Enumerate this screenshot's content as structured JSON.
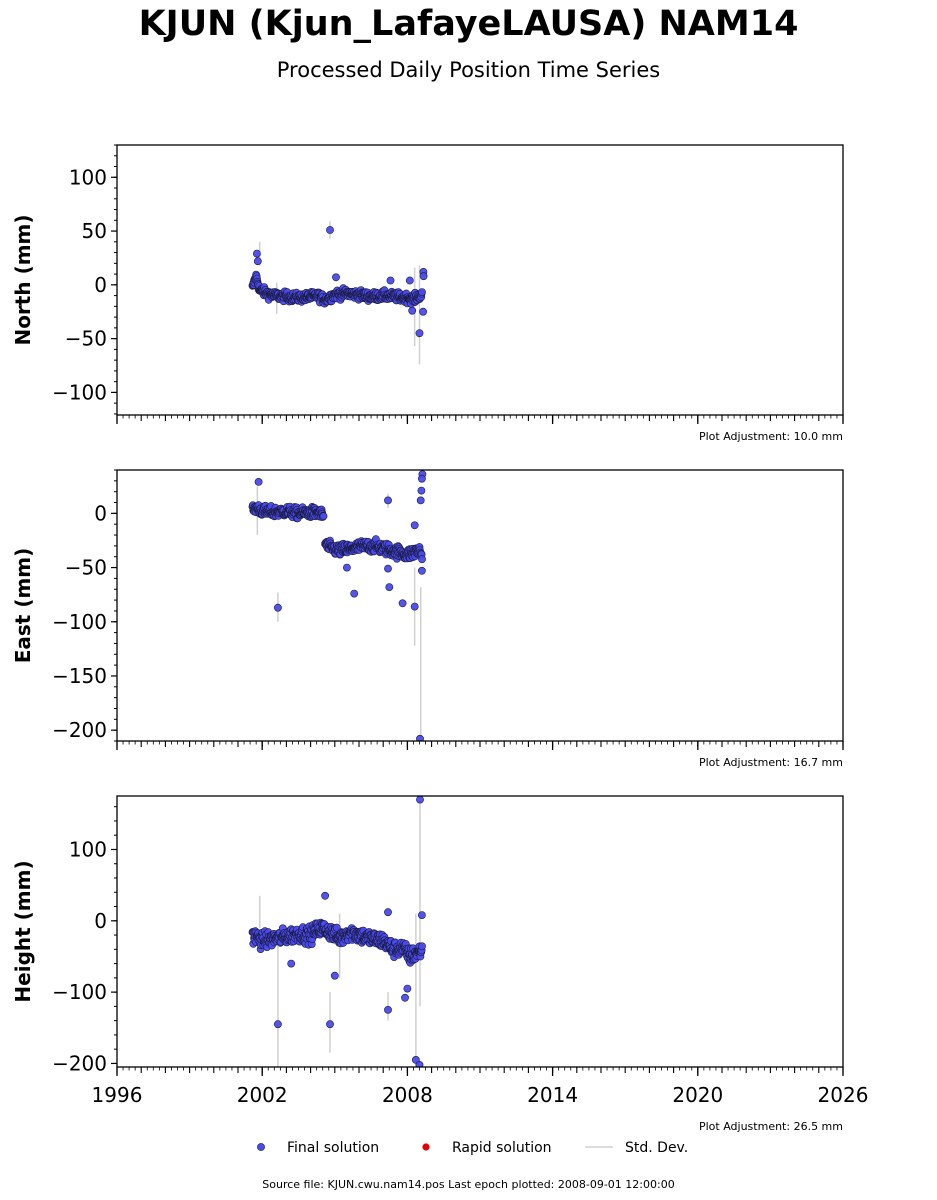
{
  "title": "KJUN (Kjun_LafayeLAUSA) NAM14",
  "subtitle": "Processed Daily Position Time Series",
  "source_text": "Source file: KJUN.cwu.nam14.pos  Last epoch plotted: 2008-09-01 12:00:00",
  "legend": {
    "final": "Final solution",
    "rapid": "Rapid solution",
    "stddev": "Std. Dev."
  },
  "colors": {
    "final": "#4a4af0",
    "final_edge": "#1a1a3a",
    "rapid": "#e00000",
    "stddev": "#d0d0d0"
  },
  "chart_data": [
    {
      "type": "scatter",
      "ylabel": "North (mm)",
      "adjustment": "Plot Adjustment: 10.0 mm",
      "xlim": [
        1996,
        2026
      ],
      "ylim": [
        -121,
        130
      ],
      "yticks": [
        100,
        50,
        0,
        -50,
        -100
      ],
      "ytick_labels": [
        "100",
        "50",
        "0",
        "−50",
        "−100"
      ],
      "yminor_step": 10,
      "xticks": [
        1996,
        2002,
        2008,
        2014,
        2020,
        2026
      ],
      "xtick_labels": [],
      "segments": [
        {
          "x": [
            2001.6,
            2001.75,
            2001.9,
            2002.2,
            2002.5,
            2003.0,
            2003.5,
            2004.0,
            2004.3,
            2004.6,
            2005.0,
            2005.5,
            2006.0,
            2006.5,
            2007.0,
            2007.5,
            2008.0,
            2008.3,
            2008.5,
            2008.62
          ],
          "y": [
            -3,
            8,
            -5,
            -8,
            -10,
            -11,
            -12,
            -11,
            -10,
            -14,
            -9,
            -8,
            -9,
            -11,
            -10,
            -11,
            -12,
            -13,
            -10,
            -8
          ],
          "spread": 6
        }
      ],
      "extra_points": [
        {
          "x": 2001.78,
          "y": 29
        },
        {
          "x": 2001.82,
          "y": 22
        },
        {
          "x": 2004.8,
          "y": 51
        },
        {
          "x": 2005.05,
          "y": 7
        },
        {
          "x": 2008.5,
          "y": -45
        },
        {
          "x": 2008.66,
          "y": 12
        },
        {
          "x": 2008.67,
          "y": 8
        },
        {
          "x": 2008.65,
          "y": -25
        },
        {
          "x": 2008.2,
          "y": -24
        },
        {
          "x": 2008.1,
          "y": 4
        },
        {
          "x": 2007.3,
          "y": 4
        }
      ],
      "error_bars": [
        {
          "x": 2002.6,
          "lo": -27,
          "hi": 2
        },
        {
          "x": 2004.8,
          "lo": 43,
          "hi": 59
        },
        {
          "x": 2008.3,
          "lo": -57,
          "hi": 16
        },
        {
          "x": 2008.5,
          "lo": -74,
          "hi": 18
        },
        {
          "x": 2001.9,
          "lo": 18,
          "hi": 40
        }
      ]
    },
    {
      "type": "scatter",
      "ylabel": "East (mm)",
      "adjustment": "Plot Adjustment: 16.7 mm",
      "xlim": [
        1996,
        2026
      ],
      "ylim": [
        -210,
        40
      ],
      "yticks": [
        0,
        -50,
        -100,
        -150,
        -200
      ],
      "ytick_labels": [
        "0",
        "−50",
        "−100",
        "−150",
        "−200"
      ],
      "yminor_step": 10,
      "xticks": [
        1996,
        2002,
        2008,
        2014,
        2020,
        2026
      ],
      "xtick_labels": [],
      "segments": [
        {
          "x": [
            2001.6,
            2001.8,
            2002.0,
            2002.5,
            2003.0,
            2003.5,
            2004.0,
            2004.4,
            2004.55
          ],
          "y": [
            3,
            5,
            2,
            1,
            2,
            0,
            1,
            0,
            -3
          ],
          "spread": 7
        },
        {
          "x": [
            2004.6,
            2004.8,
            2005.2,
            2005.6,
            2006.0,
            2006.5,
            2007.0,
            2007.5,
            2008.0,
            2008.3,
            2008.5,
            2008.62
          ],
          "y": [
            -28,
            -32,
            -34,
            -33,
            -31,
            -30,
            -32,
            -35,
            -38,
            -36,
            -34,
            -40
          ],
          "spread": 8
        }
      ],
      "extra_points": [
        {
          "x": 2001.85,
          "y": 29
        },
        {
          "x": 2002.65,
          "y": -87
        },
        {
          "x": 2005.8,
          "y": -74
        },
        {
          "x": 2005.5,
          "y": -50
        },
        {
          "x": 2007.2,
          "y": 12
        },
        {
          "x": 2007.25,
          "y": -68
        },
        {
          "x": 2007.8,
          "y": -83
        },
        {
          "x": 2008.3,
          "y": -86
        },
        {
          "x": 2008.3,
          "y": -11
        },
        {
          "x": 2008.52,
          "y": -208
        },
        {
          "x": 2008.62,
          "y": 36
        },
        {
          "x": 2008.6,
          "y": 32
        },
        {
          "x": 2008.58,
          "y": 21
        },
        {
          "x": 2008.55,
          "y": 12
        },
        {
          "x": 2007.2,
          "y": -51
        },
        {
          "x": 2008.6,
          "y": -53
        }
      ],
      "error_bars": [
        {
          "x": 2002.65,
          "lo": -100,
          "hi": -73
        },
        {
          "x": 2008.3,
          "lo": -122,
          "hi": -50
        },
        {
          "x": 2008.55,
          "lo": -208,
          "hi": -68
        },
        {
          "x": 2001.8,
          "lo": -20,
          "hi": 25
        },
        {
          "x": 2007.2,
          "lo": 5,
          "hi": 18
        }
      ]
    },
    {
      "type": "scatter",
      "ylabel": "Height (mm)",
      "adjustment": "Plot Adjustment: 26.5 mm",
      "xlim": [
        1996,
        2026
      ],
      "ylim": [
        -205,
        175
      ],
      "yticks": [
        100,
        0,
        -100,
        -200
      ],
      "ytick_labels": [
        "100",
        "0",
        "−100",
        "−200"
      ],
      "yminor_step": 20,
      "xticks": [
        1996,
        2002,
        2008,
        2014,
        2020,
        2026
      ],
      "xtick_labels": [
        "1996",
        "2002",
        "2008",
        "2014",
        "2020",
        "2026"
      ],
      "segments": [
        {
          "x": [
            2001.6,
            2002.0,
            2002.5,
            2003.0,
            2003.5,
            2004.0,
            2004.4,
            2004.8,
            2005.2,
            2005.6,
            2006.0,
            2006.5,
            2007.0,
            2007.4,
            2007.8,
            2008.1,
            2008.4,
            2008.62
          ],
          "y": [
            -20,
            -28,
            -25,
            -22,
            -18,
            -20,
            -10,
            -15,
            -25,
            -15,
            -20,
            -25,
            -28,
            -40,
            -38,
            -50,
            -45,
            -40
          ],
          "spread": 16
        }
      ],
      "extra_points": [
        {
          "x": 2002.65,
          "y": -145
        },
        {
          "x": 2004.8,
          "y": -145
        },
        {
          "x": 2007.2,
          "y": -125
        },
        {
          "x": 2008.35,
          "y": -195
        },
        {
          "x": 2008.5,
          "y": -202
        },
        {
          "x": 2008.52,
          "y": 170
        },
        {
          "x": 2004.6,
          "y": 35
        },
        {
          "x": 2007.2,
          "y": 12
        },
        {
          "x": 2003.2,
          "y": -60
        },
        {
          "x": 2005.0,
          "y": -77
        },
        {
          "x": 2007.9,
          "y": -108
        },
        {
          "x": 2008.0,
          "y": -95
        },
        {
          "x": 2008.6,
          "y": 8
        }
      ],
      "error_bars": [
        {
          "x": 2002.65,
          "lo": -205,
          "hi": -20
        },
        {
          "x": 2004.8,
          "lo": -185,
          "hi": -100
        },
        {
          "x": 2008.35,
          "lo": -205,
          "hi": 10
        },
        {
          "x": 2008.52,
          "lo": -120,
          "hi": 175
        },
        {
          "x": 2007.2,
          "lo": -140,
          "hi": -100
        },
        {
          "x": 2001.9,
          "lo": -10,
          "hi": 35
        },
        {
          "x": 2005.2,
          "lo": -80,
          "hi": 10
        }
      ]
    }
  ]
}
